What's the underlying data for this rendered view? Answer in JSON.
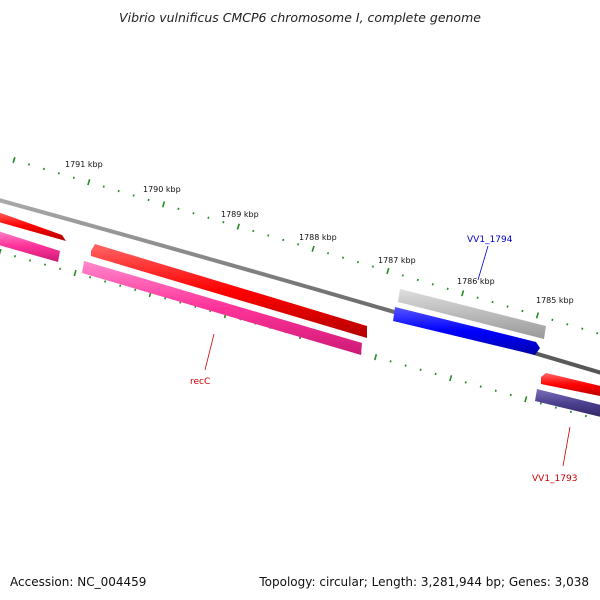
{
  "title": "Vibrio vulnificus CMCP6 chromosome I, complete genome",
  "footer": {
    "accession": "Accession: NC_004459",
    "summary": "Topology: circular; Length: 3,281,944 bp; Genes: 3,038"
  },
  "tick_labels": [
    "1791 kbp",
    "1790 kbp",
    "1789 kbp",
    "1788 kbp",
    "1787 kbp",
    "1786 kbp",
    "1785 kbp"
  ],
  "gene_labels": [
    {
      "label": "VV1_1794",
      "color": "#0000cc"
    },
    {
      "label": "recC",
      "color": "#cc0000"
    },
    {
      "label": "VV1_1793",
      "color": "#cc0000"
    }
  ],
  "colors": {
    "backbone": "#808080",
    "forward_cds": "#ff0000",
    "forward_cds_alt": "#ff3399",
    "reverse_cds": "#0000ff",
    "reverse_cds_alt": "#4b3f8f",
    "other_feature": "#bbbbbb",
    "tick_mark": "#228b22"
  }
}
